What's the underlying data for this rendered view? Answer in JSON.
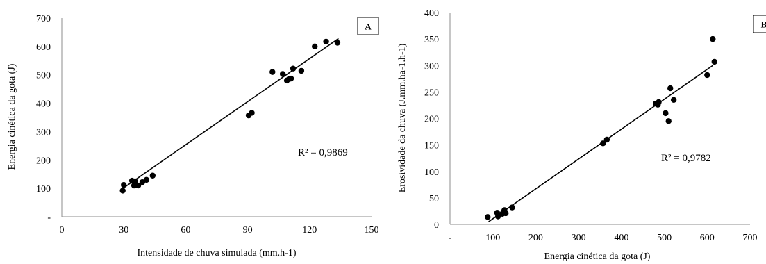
{
  "chart_data": [
    {
      "type": "scatter",
      "panel": "A",
      "xlabel": "Intensidade de chuva simulada (mm.h-1)",
      "ylabel": "Energia cinética da gota (J)",
      "xlim": [
        0,
        150
      ],
      "ylim": [
        0,
        700
      ],
      "xticks": [
        0,
        30,
        60,
        90,
        120,
        150
      ],
      "xtick_labels": [
        "0",
        "30",
        "60",
        "90",
        "120",
        "150"
      ],
      "yticks": [
        0,
        100,
        200,
        300,
        400,
        500,
        600,
        700
      ],
      "ytick_labels": [
        "-",
        "100",
        "200",
        "300",
        "400",
        "500",
        "600",
        "700"
      ],
      "r2_label": "R² = 0,9869",
      "trendline": {
        "x": [
          29,
          134
        ],
        "y": [
          97,
          628
        ]
      },
      "points": [
        {
          "x": 29.5,
          "y": 92
        },
        {
          "x": 30,
          "y": 112
        },
        {
          "x": 34,
          "y": 127
        },
        {
          "x": 35,
          "y": 110
        },
        {
          "x": 35.5,
          "y": 125
        },
        {
          "x": 36,
          "y": 112
        },
        {
          "x": 37,
          "y": 110
        },
        {
          "x": 39,
          "y": 122
        },
        {
          "x": 41,
          "y": 130
        },
        {
          "x": 44,
          "y": 145
        },
        {
          "x": 90.5,
          "y": 357
        },
        {
          "x": 92,
          "y": 366
        },
        {
          "x": 102,
          "y": 510
        },
        {
          "x": 107,
          "y": 503
        },
        {
          "x": 109,
          "y": 480
        },
        {
          "x": 110,
          "y": 485
        },
        {
          "x": 111,
          "y": 487
        },
        {
          "x": 112,
          "y": 522
        },
        {
          "x": 116,
          "y": 514
        },
        {
          "x": 122.5,
          "y": 600
        },
        {
          "x": 128,
          "y": 617
        },
        {
          "x": 133.5,
          "y": 613
        }
      ]
    },
    {
      "type": "scatter",
      "panel": "B",
      "xlabel": "Energia cinética da gota (J)",
      "ylabel": "Erosividade da chuva (J.mm.ha-1.h-1)",
      "xlim": [
        0,
        700
      ],
      "ylim": [
        0,
        400
      ],
      "xticks": [
        0,
        100,
        200,
        300,
        400,
        500,
        600,
        700
      ],
      "xtick_labels": [
        "-",
        "100",
        "200",
        "300",
        "400",
        "500",
        "600",
        "700"
      ],
      "yticks": [
        0,
        50,
        100,
        150,
        200,
        250,
        300,
        350,
        400
      ],
      "ytick_labels": [
        "0",
        "50",
        "100",
        "150",
        "200",
        "250",
        "300",
        "350",
        "400"
      ],
      "r2_label": "R² = 0,9782",
      "trendline": {
        "x": [
          90,
          613
        ],
        "y": [
          5,
          300
        ]
      },
      "points": [
        {
          "x": 88,
          "y": 14
        },
        {
          "x": 110,
          "y": 22
        },
        {
          "x": 112,
          "y": 15
        },
        {
          "x": 122,
          "y": 20
        },
        {
          "x": 125,
          "y": 24
        },
        {
          "x": 127,
          "y": 27
        },
        {
          "x": 130,
          "y": 21
        },
        {
          "x": 145,
          "y": 32
        },
        {
          "x": 357,
          "y": 153
        },
        {
          "x": 366,
          "y": 160
        },
        {
          "x": 480,
          "y": 228
        },
        {
          "x": 485,
          "y": 226
        },
        {
          "x": 487,
          "y": 231
        },
        {
          "x": 503,
          "y": 210
        },
        {
          "x": 510,
          "y": 195
        },
        {
          "x": 514,
          "y": 257
        },
        {
          "x": 522,
          "y": 235
        },
        {
          "x": 600,
          "y": 282
        },
        {
          "x": 613,
          "y": 350
        },
        {
          "x": 617,
          "y": 307
        }
      ]
    }
  ]
}
